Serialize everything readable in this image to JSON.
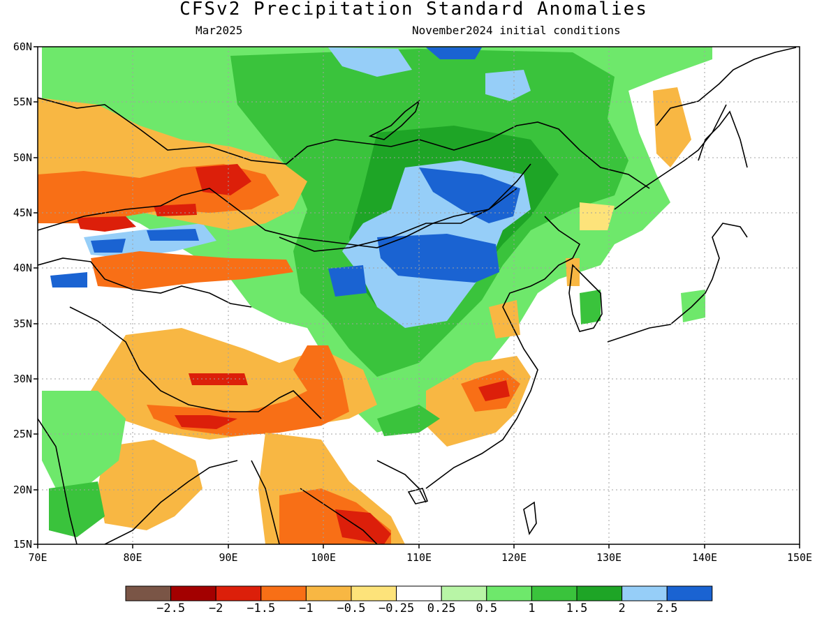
{
  "title": "CFSv2 Precipitation Standard Anomalies",
  "valid_month": "Mar2025",
  "initial_conditions": "November2024 initial conditions",
  "lat_labels": [
    "60N",
    "55N",
    "50N",
    "45N",
    "40N",
    "35N",
    "30N",
    "25N",
    "20N",
    "15N"
  ],
  "lon_labels": [
    "70E",
    "80E",
    "90E",
    "100E",
    "110E",
    "120E",
    "130E",
    "140E",
    "150E"
  ],
  "legend": {
    "labels": [
      "−2.5",
      "−2",
      "−1.5",
      "−1",
      "−0.5",
      "−0.25",
      "0.25",
      "0.5",
      "1",
      "1.5",
      "2",
      "2.5"
    ],
    "colors": [
      "#7a5546",
      "#a30000",
      "#dc1f0a",
      "#f86f16",
      "#f8b743",
      "#fde37a",
      "#ffffff",
      "#b8f5a6",
      "#6ee86b",
      "#3ac33c",
      "#1ea526",
      "#96cef8",
      "#1a63d2"
    ]
  },
  "anomaly_colors": {
    "very_dry": "#a30000",
    "dry_strong": "#dc1f0a",
    "dry": "#f86f16",
    "dry_moderate": "#f8b743",
    "dry_weak": "#fde37a",
    "neutral": "#ffffff",
    "wet_weak": "#b8f5a6",
    "wet": "#6ee86b",
    "wet_moderate": "#3ac33c",
    "wet_strong": "#1ea526",
    "very_wet": "#96cef8",
    "extreme_wet": "#1a63d2"
  }
}
